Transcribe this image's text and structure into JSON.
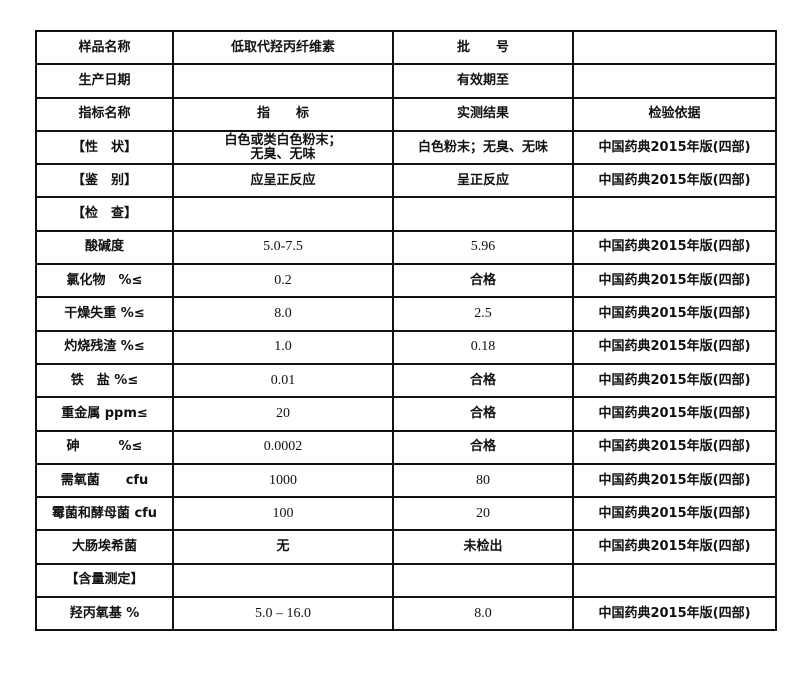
{
  "header_rows": [
    {
      "label": "样品名称",
      "value": "低取代羟丙纤维素",
      "label2": "批　　号",
      "value2": ""
    },
    {
      "label": "生产日期",
      "value": "",
      "label2": "有效期至",
      "value2": ""
    }
  ],
  "columns": [
    "指标名称",
    "指　　标",
    "实测结果",
    "检验依据"
  ],
  "rows": [
    {
      "name": "【性　状】",
      "spec": "白色或类白色粉末；\n无臭、无味",
      "result": "白色粉末；无臭、无味",
      "basis": "中国药典2015年版(四部)"
    },
    {
      "name": "【鉴　别】",
      "spec": "应呈正反应",
      "result": "呈正反应",
      "basis": "中国药典2015年版(四部)"
    },
    {
      "name": "【检　查】",
      "spec": "",
      "result": "",
      "basis": ""
    },
    {
      "name": "酸碱度",
      "spec": "5.0-7.5",
      "result": "5.96",
      "basis": "中国药典2015年版(四部)"
    },
    {
      "name": "氯化物　%≤",
      "spec": "0.2",
      "result": "合格",
      "basis": "中国药典2015年版(四部)"
    },
    {
      "name": "干燥失重 %≤",
      "spec": "8.0",
      "result": "2.5",
      "basis": "中国药典2015年版(四部)"
    },
    {
      "name": "灼烧残渣 %≤",
      "spec": "1.0",
      "result": "0.18",
      "basis": "中国药典2015年版(四部)"
    },
    {
      "name": "铁　盐 %≤",
      "spec": "0.01",
      "result": "合格",
      "basis": "中国药典2015年版(四部)"
    },
    {
      "name": "重金属 ppm≤",
      "spec": "20",
      "result": "合格",
      "basis": "中国药典2015年版(四部)"
    },
    {
      "name": "砷　　　%≤",
      "spec": "0.0002",
      "result": "合格",
      "basis": "中国药典2015年版(四部)"
    },
    {
      "name": "需氧菌　　cfu",
      "spec": "1000",
      "result": "80",
      "basis": "中国药典2015年版(四部)"
    },
    {
      "name": "霉菌和酵母菌 cfu",
      "spec": "100",
      "result": "20",
      "basis": "中国药典2015年版(四部)"
    },
    {
      "name": "大肠埃希菌",
      "spec": "无",
      "result": "未检出",
      "basis": "中国药典2015年版(四部)"
    },
    {
      "name": "【含量测定】",
      "spec": "",
      "result": "",
      "basis": ""
    },
    {
      "name": "羟丙氧基 %",
      "spec": "5.0 – 16.0",
      "result": "8.0",
      "basis": "中国药典2015年版(四部)"
    }
  ]
}
